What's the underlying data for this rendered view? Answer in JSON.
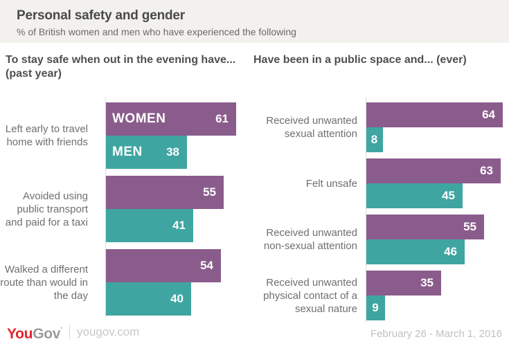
{
  "header": {
    "title": "Personal safety and gender",
    "subtitle": "% of British women and men who have experienced the following"
  },
  "chart_data": [
    {
      "type": "bar",
      "orientation": "horizontal",
      "title": "To stay safe when out in the evening have... (past year)",
      "unit": "%",
      "grid": false,
      "legend_position": "inside-first-bars",
      "categories": [
        "Left early to travel home with friends",
        "Avoided using public transport and paid for a taxi",
        "Walked a different route than would in the day"
      ],
      "series": [
        {
          "name": "WOMEN",
          "color": "#8a5c8c",
          "values": [
            61,
            55,
            54
          ]
        },
        {
          "name": "MEN",
          "color": "#3fa5a1",
          "values": [
            38,
            41,
            40
          ]
        }
      ]
    },
    {
      "type": "bar",
      "orientation": "horizontal",
      "title": "Have been in a public space and... (ever)",
      "unit": "%",
      "grid": false,
      "legend_position": "none",
      "categories": [
        "Received unwanted sexual attention",
        "Felt unsafe",
        "Received unwanted non-sexual attention",
        "Received unwanted physical contact of a sexual nature"
      ],
      "series": [
        {
          "name": "WOMEN",
          "color": "#8a5c8c",
          "values": [
            64,
            63,
            55,
            35
          ]
        },
        {
          "name": "MEN",
          "color": "#3fa5a1",
          "values": [
            8,
            45,
            46,
            9
          ]
        }
      ]
    }
  ],
  "footer": {
    "brand_you": "You",
    "brand_gov": "Gov",
    "brand_mark": "’",
    "site": "yougov.com",
    "date_range": "February 26 - March 1, 2016"
  },
  "colors": {
    "women": "#8a5c8c",
    "men": "#3fa5a1",
    "header_bg": "#f2f1ee",
    "logo_red": "#e0262d",
    "axis_line": "#dcdcdc"
  }
}
